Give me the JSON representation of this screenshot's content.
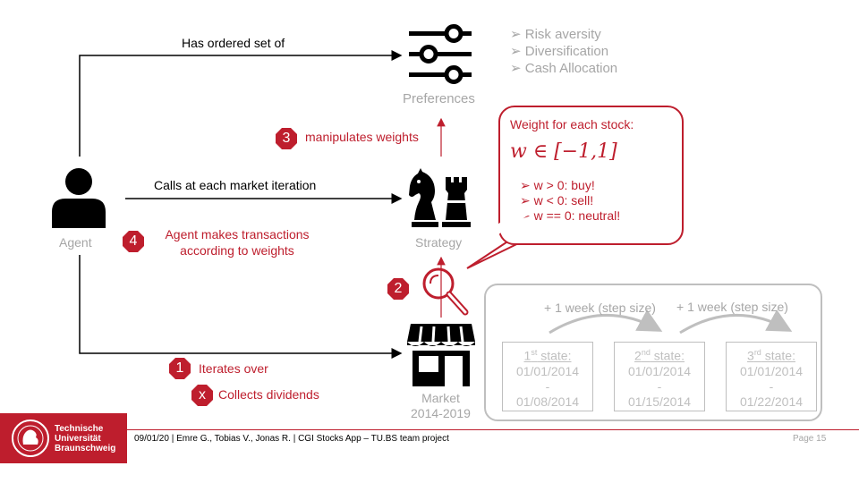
{
  "agent": {
    "label": "Agent"
  },
  "preferences": {
    "label": "Preferences",
    "items": [
      "Risk aversity",
      "Diversification",
      "Cash Allocation"
    ]
  },
  "strategy": {
    "label": "Strategy"
  },
  "market": {
    "label": "Market",
    "years": "2014-2019"
  },
  "edges": {
    "has_ordered": "Has ordered set of",
    "calls": "Calls at each market iteration",
    "manipulates": "manipulates weights",
    "transactions_line1": "Agent makes transactions",
    "transactions_line2": "according to weights",
    "iterates": "Iterates over",
    "dividends": "Collects dividends"
  },
  "badges": {
    "b1": "1",
    "b2": "2",
    "b3": "3",
    "b4": "4",
    "bx": "x"
  },
  "callout": {
    "title": "Weight for each stock:",
    "formula": "w ∈ [−1,1]",
    "rules": [
      "w > 0: buy!",
      "w < 0: sell!",
      "w == 0: neutral!"
    ]
  },
  "states": {
    "step1": "+ 1 week (step size)",
    "step2": "+ 1 week (step size)",
    "s1": {
      "num": "1",
      "sup": "st",
      "word": " state:",
      "from": "01/01/2014",
      "dash": "-",
      "to": "01/08/2014"
    },
    "s2": {
      "num": "2",
      "sup": "nd",
      "word": " state:",
      "from": "01/01/2014",
      "dash": "-",
      "to": "01/15/2014"
    },
    "s3": {
      "num": "3",
      "sup": "rd",
      "word": " state:",
      "from": "01/01/2014",
      "dash": "-",
      "to": "01/22/2014"
    }
  },
  "footer": {
    "logo_line1": "Technische",
    "logo_line2": "Universität",
    "logo_line3": "Braunschweig",
    "text": "09/01/20 | Emre G., Tobias V., Jonas R. | CGI Stocks App – TU.BS team project",
    "page": "Page 15"
  },
  "colors": {
    "accent": "#be1e2d",
    "muted": "#a6a6a6",
    "light": "#bfbfbf"
  }
}
